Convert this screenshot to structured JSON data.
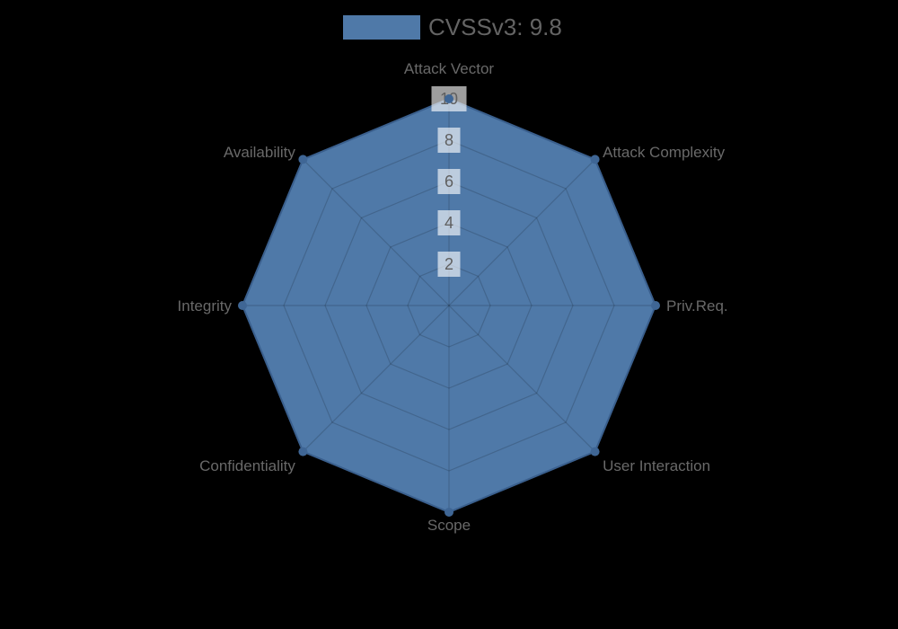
{
  "page": {
    "background": "#000000"
  },
  "legend": {
    "label": "CVSSv3: 9.8",
    "swatch_color": "#4f79a8"
  },
  "chart_data": {
    "type": "radar",
    "title": "",
    "categories": [
      "Attack Vector",
      "Attack Complexity",
      "Priv.Req.",
      "User Interaction",
      "Scope",
      "Confidentiality",
      "Integrity",
      "Availability"
    ],
    "series": [
      {
        "name": "CVSSv3: 9.8",
        "values": [
          10,
          10,
          10,
          10,
          10,
          10,
          10,
          10
        ]
      }
    ],
    "rmin": 0,
    "rmax": 10,
    "ticks": [
      2,
      4,
      6,
      8,
      10
    ],
    "grid": true,
    "legend_position": "top",
    "colors": {
      "fill": "#4f79a8",
      "border": "#3a5f8d",
      "marker": "#3f6695",
      "grid_line": "rgba(0,0,0,0.16)",
      "tick_backdrop": "rgba(255,255,255,0.62)",
      "tick_text": "#5f5f5f",
      "axis_label": "#696969",
      "legend_text": "#646464"
    }
  }
}
